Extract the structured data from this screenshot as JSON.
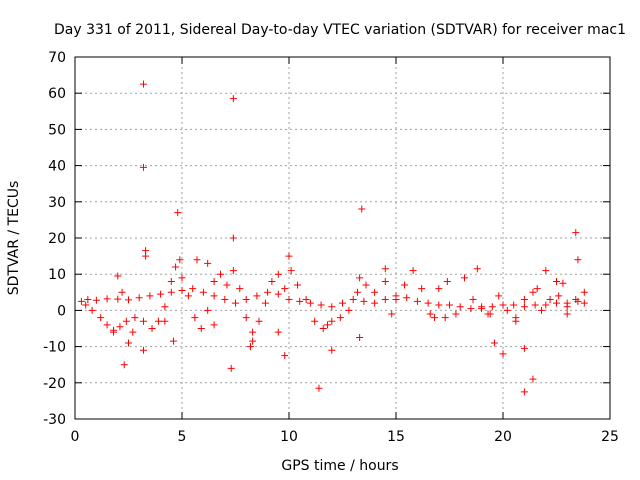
{
  "chart_data": {
    "type": "scatter",
    "title": "Day 331 of 2011, Sidereal Day-to-day VTEC variation (SDTVAR) for receiver mac1",
    "xlabel": "GPS time / hours",
    "ylabel": "SDTVAR / TECUs",
    "xlim": [
      0,
      25
    ],
    "ylim": [
      -30,
      70
    ],
    "xticks": [
      0,
      5,
      10,
      15,
      20,
      25
    ],
    "yticks": [
      -30,
      -20,
      -10,
      0,
      10,
      20,
      30,
      40,
      50,
      60,
      70
    ],
    "grid": true,
    "marker": "+",
    "series_color": "#ff0000",
    "series": [
      {
        "name": "SDTVAR",
        "points": [
          [
            0.3,
            2.5
          ],
          [
            0.6,
            3.0
          ],
          [
            1.0,
            2.8
          ],
          [
            1.5,
            3.2
          ],
          [
            2.0,
            3.1
          ],
          [
            2.5,
            2.9
          ],
          [
            3.0,
            3.5
          ],
          [
            3.5,
            4.0
          ],
          [
            4.0,
            4.5
          ],
          [
            4.5,
            5.0
          ],
          [
            5.0,
            5.5
          ],
          [
            5.5,
            6.0
          ],
          [
            6.0,
            5.0
          ],
          [
            6.5,
            4.0
          ],
          [
            7.0,
            3.0
          ],
          [
            7.5,
            2.0
          ],
          [
            8.0,
            3.0
          ],
          [
            8.5,
            4.0
          ],
          [
            9.0,
            5.0
          ],
          [
            9.5,
            4.5
          ],
          [
            10.0,
            3.0
          ],
          [
            10.5,
            2.5
          ],
          [
            11.0,
            2.0
          ],
          [
            11.5,
            1.5
          ],
          [
            12.0,
            1.0
          ],
          [
            12.5,
            2.0
          ],
          [
            13.0,
            3.0
          ],
          [
            13.5,
            2.5
          ],
          [
            14.0,
            2.0
          ],
          [
            14.5,
            3.0
          ],
          [
            15.0,
            4.0
          ],
          [
            15.5,
            3.5
          ],
          [
            16.0,
            2.5
          ],
          [
            16.5,
            2.0
          ],
          [
            17.0,
            1.5
          ],
          [
            17.5,
            1.5
          ],
          [
            18.0,
            1.0
          ],
          [
            18.5,
            0.5
          ],
          [
            19.0,
            0.5
          ],
          [
            19.5,
            1.0
          ],
          [
            20.0,
            1.5
          ],
          [
            20.5,
            1.5
          ],
          [
            21.0,
            1.0
          ],
          [
            21.5,
            1.5
          ],
          [
            22.0,
            1.5
          ],
          [
            22.5,
            2.0
          ],
          [
            23.0,
            2.0
          ],
          [
            23.5,
            2.5
          ],
          [
            23.8,
            2.0
          ],
          [
            0.5,
            1.5
          ],
          [
            0.8,
            0.0
          ],
          [
            1.2,
            -2.0
          ],
          [
            1.5,
            -4.0
          ],
          [
            1.8,
            -5.5
          ],
          [
            2.1,
            -4.5
          ],
          [
            2.4,
            -3.0
          ],
          [
            2.8,
            -2.0
          ],
          [
            3.2,
            -3.0
          ],
          [
            3.6,
            -5.0
          ],
          [
            3.9,
            -3.0
          ],
          [
            4.2,
            1.0
          ],
          [
            4.5,
            8.0
          ],
          [
            4.7,
            12.0
          ],
          [
            5.0,
            9.0
          ],
          [
            5.3,
            4.0
          ],
          [
            5.6,
            -2.0
          ],
          [
            5.9,
            -5.0
          ],
          [
            6.2,
            0.0
          ],
          [
            6.5,
            8.0
          ],
          [
            6.8,
            10.0
          ],
          [
            7.1,
            7.0
          ],
          [
            7.4,
            11.0
          ],
          [
            7.7,
            6.0
          ],
          [
            8.0,
            -2.0
          ],
          [
            8.3,
            -6.0
          ],
          [
            8.6,
            -3.0
          ],
          [
            8.9,
            2.0
          ],
          [
            9.2,
            8.0
          ],
          [
            9.5,
            10.0
          ],
          [
            9.8,
            6.0
          ],
          [
            10.1,
            11.0
          ],
          [
            10.4,
            7.0
          ],
          [
            10.8,
            3.0
          ],
          [
            11.2,
            -3.0
          ],
          [
            11.6,
            -5.0
          ],
          [
            12.0,
            -3.0
          ],
          [
            12.4,
            -2.0
          ],
          [
            12.8,
            0.0
          ],
          [
            13.2,
            5.0
          ],
          [
            13.6,
            7.0
          ],
          [
            14.0,
            5.0
          ],
          [
            14.5,
            8.0
          ],
          [
            15.0,
            3.0
          ],
          [
            15.4,
            7.0
          ],
          [
            15.8,
            11.0
          ],
          [
            16.2,
            6.0
          ],
          [
            16.6,
            -1.0
          ],
          [
            17.0,
            6.0
          ],
          [
            17.4,
            8.0
          ],
          [
            17.8,
            -1.0
          ],
          [
            18.2,
            9.0
          ],
          [
            18.6,
            3.0
          ],
          [
            19.0,
            1.0
          ],
          [
            19.4,
            -1.0
          ],
          [
            19.8,
            4.0
          ],
          [
            20.2,
            0.0
          ],
          [
            20.6,
            -2.0
          ],
          [
            21.0,
            3.0
          ],
          [
            21.4,
            5.0
          ],
          [
            21.8,
            0.0
          ],
          [
            22.2,
            3.0
          ],
          [
            22.6,
            4.0
          ],
          [
            23.0,
            1.0
          ],
          [
            23.4,
            3.0
          ],
          [
            23.8,
            5.0
          ],
          [
            3.2,
            62.5
          ],
          [
            3.2,
            39.5
          ],
          [
            7.4,
            58.5
          ],
          [
            4.8,
            27.0
          ],
          [
            7.4,
            20.0
          ],
          [
            13.4,
            28.0
          ],
          [
            23.4,
            21.5
          ],
          [
            23.5,
            14.0
          ],
          [
            3.3,
            16.5
          ],
          [
            3.3,
            15.0
          ],
          [
            2.3,
            -15.0
          ],
          [
            2.5,
            -9.0
          ],
          [
            3.2,
            -11.0
          ],
          [
            7.3,
            -16.0
          ],
          [
            9.8,
            -12.5
          ],
          [
            11.4,
            -21.5
          ],
          [
            12.0,
            -11.0
          ],
          [
            13.3,
            -7.5
          ],
          [
            20.0,
            -12.0
          ],
          [
            19.6,
            -9.0
          ],
          [
            21.0,
            -10.5
          ],
          [
            21.4,
            -19.0
          ],
          [
            21.0,
            -22.5
          ],
          [
            8.2,
            -10.0
          ],
          [
            8.3,
            -8.5
          ],
          [
            2.0,
            9.5
          ],
          [
            18.8,
            11.5
          ],
          [
            14.5,
            11.5
          ],
          [
            22.0,
            11.0
          ],
          [
            10.0,
            15.0
          ],
          [
            5.7,
            14.0
          ],
          [
            6.2,
            13.0
          ],
          [
            4.9,
            14.0
          ],
          [
            13.3,
            9.0
          ],
          [
            4.6,
            -8.5
          ],
          [
            4.2,
            -3.0
          ],
          [
            2.2,
            5.0
          ],
          [
            2.7,
            -6.0
          ],
          [
            16.8,
            -2.0
          ],
          [
            20.6,
            -3.0
          ],
          [
            22.5,
            8.0
          ],
          [
            22.8,
            7.5
          ],
          [
            21.6,
            6.0
          ],
          [
            1.8,
            -6.0
          ],
          [
            6.5,
            -4.0
          ],
          [
            9.5,
            -6.0
          ],
          [
            11.8,
            -4.0
          ],
          [
            14.8,
            -1.0
          ],
          [
            17.3,
            -2.0
          ],
          [
            19.3,
            -1.0
          ],
          [
            23.0,
            -1.0
          ]
        ]
      }
    ]
  }
}
